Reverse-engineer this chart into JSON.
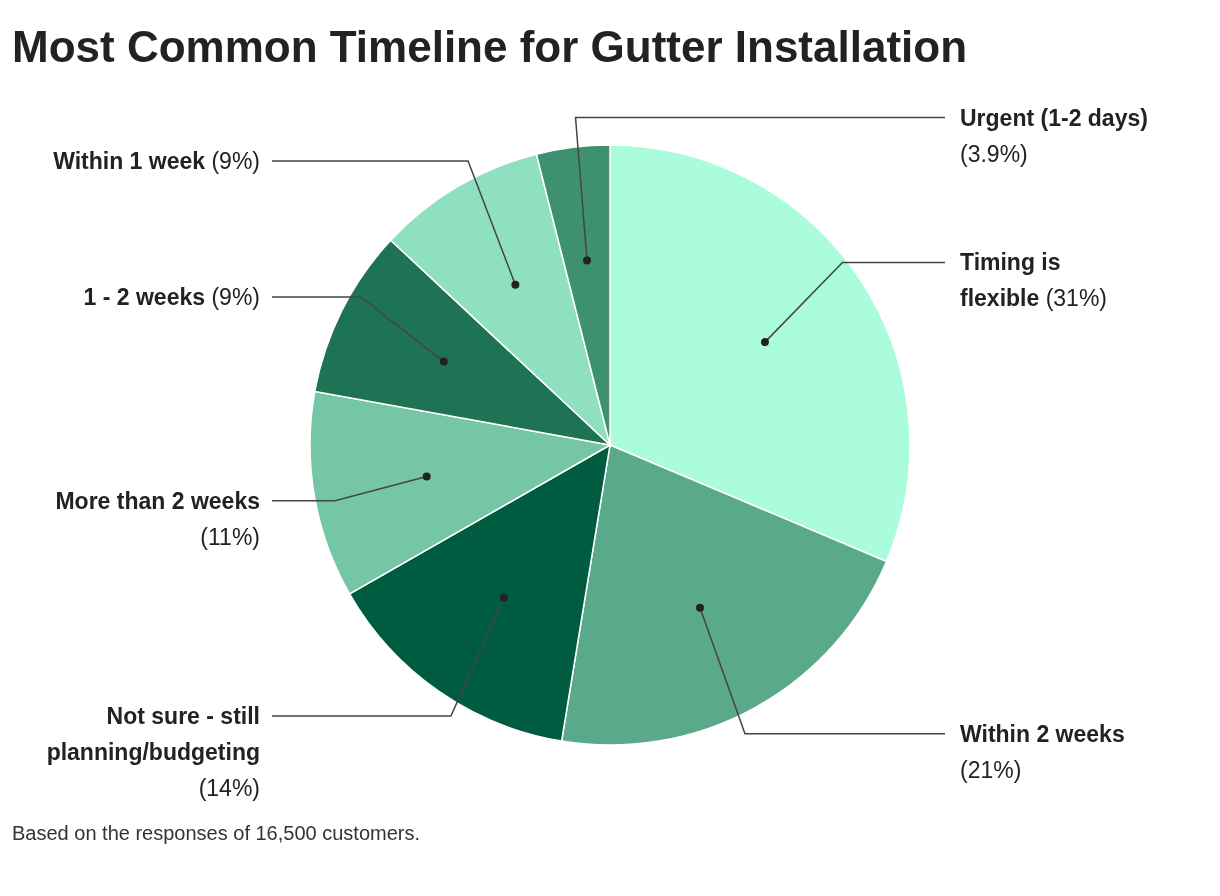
{
  "chart_data": {
    "type": "pie",
    "title": "Most Common Timeline for Gutter Installation",
    "categories": [
      "Timing is flexible",
      "Within 2 weeks",
      "Not sure - still planning/budgeting",
      "More than 2 weeks",
      "1 - 2 weeks",
      "Within 1 week",
      "Urgent (1-2 days)"
    ],
    "values": [
      31,
      21,
      14,
      11,
      9,
      9,
      3.9
    ],
    "value_labels": [
      "(31%)",
      "(21%)",
      "(14%)",
      "(11%)",
      "(9%)",
      "(9%)",
      "(3.9%)"
    ],
    "colors": [
      "#abfcdc",
      "#5aa98a",
      "#005c40",
      "#74c6a5",
      "#1f7355",
      "#8ee0c1",
      "#3e9170"
    ],
    "annotations": [
      "Based on the responses of 16,500 customers."
    ]
  }
}
